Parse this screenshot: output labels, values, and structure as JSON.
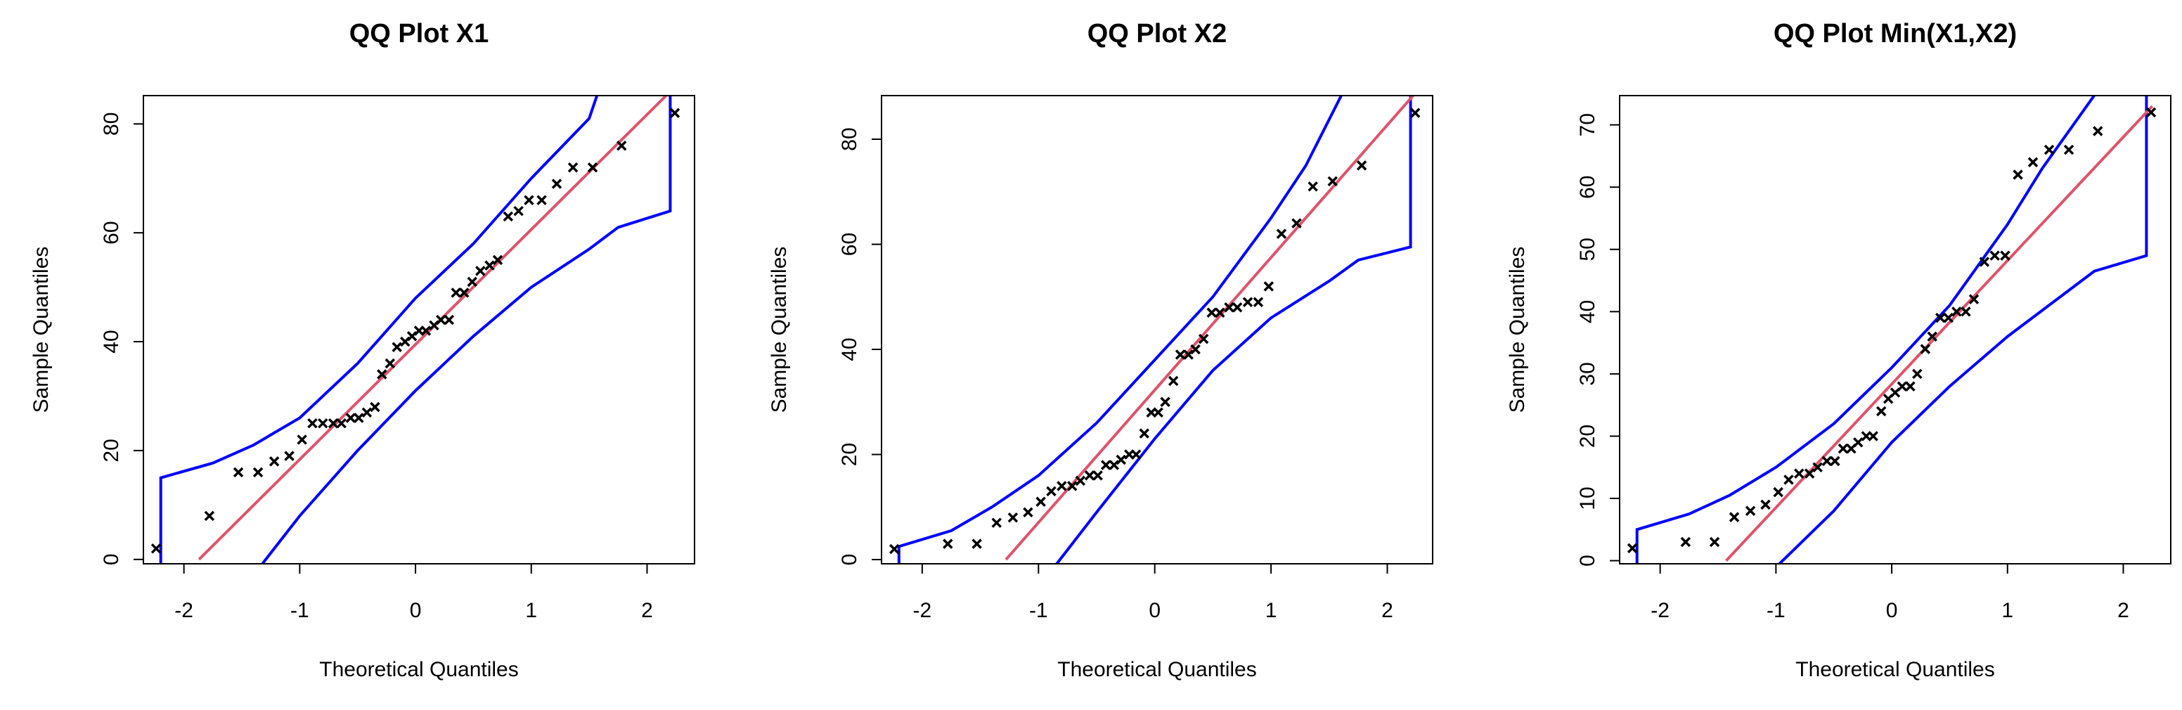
{
  "chart_data": [
    {
      "type": "scatter",
      "title": "QQ Plot X1",
      "xlabel": "Theoretical Quantiles",
      "ylabel": "Sample Quantiles",
      "xlim": [
        -2.35,
        2.41
      ],
      "ylim": [
        -0.8,
        85.2
      ],
      "xticks": [
        -2,
        -1,
        0,
        1,
        2
      ],
      "yticks": [
        0,
        20,
        40,
        60,
        80
      ],
      "points": {
        "color": "#000000",
        "x": [
          -2.24,
          -1.78,
          -1.53,
          -1.36,
          -1.22,
          -1.09,
          -0.98,
          -0.89,
          -0.8,
          -0.71,
          -0.64,
          -0.56,
          -0.49,
          -0.42,
          -0.35,
          -0.29,
          -0.22,
          -0.16,
          -0.09,
          -0.03,
          0.03,
          0.09,
          0.16,
          0.22,
          0.29,
          0.35,
          0.42,
          0.49,
          0.56,
          0.64,
          0.71,
          0.8,
          0.89,
          0.98,
          1.09,
          1.22,
          1.36,
          1.53,
          1.78,
          2.24
        ],
        "values": [
          2,
          8,
          16,
          16,
          18,
          19,
          22,
          25,
          25,
          25,
          25,
          26,
          26,
          27,
          28,
          34,
          36,
          39,
          40,
          41,
          42,
          42,
          43,
          44,
          44,
          49,
          49,
          51,
          53,
          54,
          55,
          63,
          64,
          66,
          66,
          69,
          72,
          72,
          76,
          82
        ]
      },
      "qqline": {
        "color": "#df536b",
        "x": [
          -1.87,
          2.25
        ],
        "values": [
          0,
          87
        ]
      },
      "upper_band": {
        "color": "#0000ff",
        "x": [
          -2.2,
          -2.2,
          -1.75,
          -1.4,
          -1,
          -0.5,
          0,
          0.5,
          1,
          1.5,
          1.58
        ],
        "values": [
          -3,
          15,
          17.7,
          21,
          26,
          36,
          48,
          58,
          70,
          81,
          86
        ]
      },
      "lower_band": {
        "color": "#0000ff",
        "x": [
          -1.33,
          -1,
          -0.5,
          0,
          0.5,
          1,
          1.5,
          1.75,
          2.2,
          2.2
        ],
        "values": [
          -1,
          8,
          20,
          31,
          41,
          50,
          57,
          61,
          64,
          90
        ]
      }
    },
    {
      "type": "scatter",
      "title": "QQ Plot X2",
      "xlabel": "Theoretical Quantiles",
      "ylabel": "Sample Quantiles",
      "xlim": [
        -2.35,
        2.39
      ],
      "ylim": [
        -0.8,
        88.3
      ],
      "xticks": [
        -2,
        -1,
        0,
        1,
        2
      ],
      "yticks": [
        0,
        20,
        40,
        60,
        80
      ],
      "points": {
        "color": "#000000",
        "x": [
          -2.24,
          -1.78,
          -1.53,
          -1.36,
          -1.22,
          -1.09,
          -0.98,
          -0.89,
          -0.8,
          -0.71,
          -0.64,
          -0.56,
          -0.49,
          -0.42,
          -0.35,
          -0.29,
          -0.22,
          -0.16,
          -0.09,
          -0.03,
          0.03,
          0.09,
          0.16,
          0.22,
          0.29,
          0.35,
          0.42,
          0.49,
          0.56,
          0.64,
          0.71,
          0.8,
          0.89,
          0.98,
          1.09,
          1.22,
          1.36,
          1.53,
          1.78,
          2.24
        ],
        "values": [
          2,
          3,
          3,
          7,
          8,
          9,
          11,
          13,
          14,
          14,
          15,
          16,
          16,
          18,
          18,
          19,
          20,
          20,
          24,
          28,
          28,
          30,
          34,
          39,
          39,
          40,
          42,
          47,
          47,
          48,
          48,
          49,
          49,
          52,
          62,
          64,
          71,
          72,
          75,
          85
        ]
      },
      "qqline": {
        "color": "#df536b",
        "x": [
          -1.28,
          2.25
        ],
        "values": [
          0,
          89
        ]
      },
      "upper_band": {
        "color": "#0000ff",
        "x": [
          -2.2,
          -2.2,
          -1.75,
          -1.4,
          -1,
          -0.5,
          0,
          0.5,
          1,
          1.3,
          1.62
        ],
        "values": [
          -3,
          2.5,
          5.5,
          10,
          16,
          26,
          38,
          50,
          65,
          75,
          89
        ]
      },
      "lower_band": {
        "color": "#0000ff",
        "x": [
          -0.85,
          -0.5,
          0,
          0.5,
          1,
          1.5,
          1.75,
          2.2,
          2.2
        ],
        "values": [
          -1,
          9,
          23,
          36,
          46,
          53,
          57,
          59.5,
          90
        ]
      }
    },
    {
      "type": "scatter",
      "title": "QQ Plot Min(X1,X2)",
      "xlabel": "Theoretical Quantiles",
      "ylabel": "Sample Quantiles",
      "xlim": [
        -2.35,
        2.41
      ],
      "ylim": [
        -0.5,
        74.7
      ],
      "xticks": [
        -2,
        -1,
        0,
        1,
        2
      ],
      "yticks": [
        0,
        10,
        20,
        30,
        40,
        50,
        60,
        70
      ],
      "points": {
        "color": "#000000",
        "x": [
          -2.24,
          -1.78,
          -1.53,
          -1.36,
          -1.22,
          -1.09,
          -0.98,
          -0.89,
          -0.8,
          -0.71,
          -0.64,
          -0.56,
          -0.49,
          -0.42,
          -0.35,
          -0.29,
          -0.22,
          -0.16,
          -0.09,
          -0.03,
          0.03,
          0.09,
          0.16,
          0.22,
          0.29,
          0.35,
          0.42,
          0.49,
          0.56,
          0.64,
          0.71,
          0.8,
          0.89,
          0.98,
          1.09,
          1.22,
          1.36,
          1.53,
          1.78,
          2.24
        ],
        "values": [
          2,
          3,
          3,
          7,
          8,
          9,
          11,
          13,
          14,
          14,
          15,
          16,
          16,
          18,
          18,
          19,
          20,
          20,
          24,
          26,
          27,
          28,
          28,
          30,
          34,
          36,
          39,
          39,
          40,
          40,
          42,
          48,
          49,
          49,
          62,
          64,
          66,
          66,
          69,
          72
        ]
      },
      "qqline": {
        "color": "#df536b",
        "x": [
          -1.43,
          2.25
        ],
        "values": [
          0,
          73
        ]
      },
      "upper_band": {
        "color": "#0000ff",
        "x": [
          -2.2,
          -2.2,
          -1.75,
          -1.4,
          -1,
          -0.5,
          0,
          0.5,
          1,
          1.3,
          1.76
        ],
        "values": [
          -2,
          5,
          7.5,
          10.5,
          15,
          22,
          31,
          41,
          54,
          63,
          75
        ]
      },
      "lower_band": {
        "color": "#0000ff",
        "x": [
          -0.97,
          -0.5,
          0,
          0.5,
          1,
          1.5,
          1.75,
          2.2,
          2.2
        ],
        "values": [
          -0.5,
          8,
          19,
          28,
          36,
          43,
          46.5,
          49,
          76
        ]
      }
    }
  ]
}
